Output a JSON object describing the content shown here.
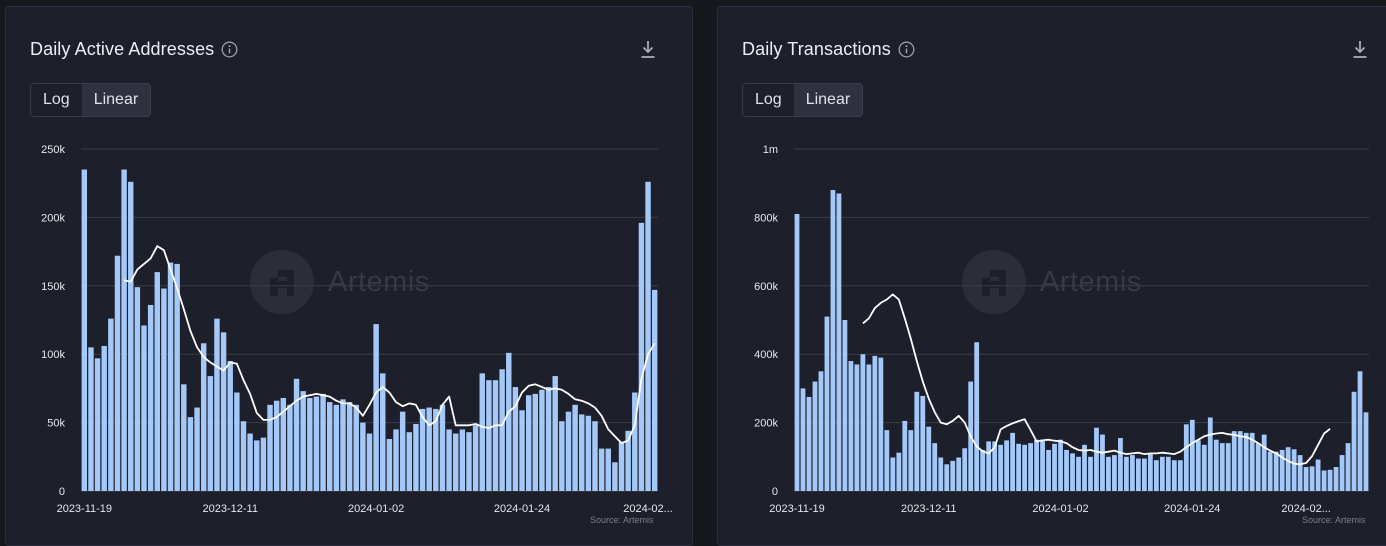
{
  "panels": [
    {
      "title": "Daily Active Addresses",
      "info_icon": "info-icon",
      "download_icon": "download-icon",
      "scale_options": [
        "Log",
        "Linear"
      ],
      "scale_selected": "Linear",
      "watermark": "Artemis",
      "source": "Source: Artemis"
    },
    {
      "title": "Daily Transactions",
      "info_icon": "info-icon",
      "download_icon": "download-icon",
      "scale_options": [
        "Log",
        "Linear"
      ],
      "scale_selected": "Linear",
      "watermark": "Artemis",
      "source": "Source: Artemis"
    }
  ],
  "colors": {
    "bar": "#a4c8f8",
    "line": "#ffffff",
    "grid": "#3a3d48",
    "axis_text": "#e6e8ec",
    "panel_bg": "#1d1f2a"
  },
  "chart_data": [
    {
      "type": "bar",
      "title": "Daily Active Addresses",
      "x_tick_labels": [
        "2023-11-19",
        "2023-12-11",
        "2024-01-02",
        "2024-01-24",
        "2024-02..."
      ],
      "x_tick_indices": [
        0,
        22,
        44,
        66,
        85
      ],
      "y_tick_labels": [
        "0",
        "50k",
        "100k",
        "150k",
        "200k",
        "250k"
      ],
      "y_tick_values": [
        0,
        50000,
        100000,
        150000,
        200000,
        250000
      ],
      "ylim": [
        0,
        250000
      ],
      "grid": true,
      "series": [
        {
          "type": "bar",
          "values": [
            235000,
            105000,
            97000,
            106000,
            126000,
            172000,
            235000,
            226000,
            149000,
            121000,
            136000,
            160000,
            148000,
            167000,
            166000,
            78000,
            54000,
            61000,
            108000,
            84000,
            126000,
            116000,
            95000,
            72000,
            51000,
            42000,
            37000,
            39000,
            63000,
            66000,
            68000,
            63000,
            82000,
            73000,
            68000,
            69000,
            71000,
            65000,
            63000,
            67000,
            65000,
            63000,
            50000,
            42000,
            122000,
            86000,
            38000,
            45000,
            58000,
            43000,
            49000,
            60000,
            61000,
            60000,
            63000,
            45000,
            42000,
            45000,
            43000,
            48000,
            86000,
            81000,
            81000,
            89000,
            101000,
            76000,
            59000,
            70000,
            71000,
            74000,
            76000,
            84000,
            51000,
            58000,
            63000,
            56000,
            55000,
            51000,
            31000,
            31000,
            21000,
            36000,
            44000,
            72000,
            196000,
            226000,
            147000
          ]
        },
        {
          "type": "line",
          "start_index": 6,
          "values": [
            154000,
            153000,
            162000,
            166000,
            170000,
            179000,
            176000,
            162000,
            148000,
            133000,
            117000,
            105000,
            98000,
            94000,
            91000,
            88000,
            94000,
            93000,
            81000,
            71000,
            57000,
            52000,
            52000,
            54000,
            58000,
            62000,
            66000,
            69000,
            70000,
            71000,
            70000,
            69000,
            66000,
            64000,
            64000,
            61000,
            55000,
            63000,
            72000,
            76000,
            72000,
            65000,
            62000,
            64000,
            63000,
            54000,
            48000,
            51000,
            63000,
            69000,
            48000,
            48000,
            48000,
            49000,
            47000,
            46000,
            48000,
            48000,
            58000,
            62000,
            72000,
            77000,
            78000,
            76000,
            74000,
            75000,
            74000,
            71000,
            67000,
            66000,
            64000,
            61000,
            55000,
            45000,
            40000,
            35000,
            37000,
            48000,
            82000,
            100000,
            108000
          ]
        }
      ]
    },
    {
      "type": "bar",
      "title": "Daily Transactions",
      "x_tick_labels": [
        "2023-11-19",
        "2023-12-11",
        "2024-01-02",
        "2024-01-24",
        "2024-02..."
      ],
      "x_tick_indices": [
        0,
        22,
        44,
        66,
        85
      ],
      "y_tick_labels": [
        "0",
        "200k",
        "400k",
        "600k",
        "800k",
        "1m"
      ],
      "y_tick_values": [
        0,
        200000,
        400000,
        600000,
        800000,
        1000000
      ],
      "ylim": [
        0,
        1000000
      ],
      "grid": true,
      "series": [
        {
          "type": "bar",
          "values": [
            810000,
            300000,
            275000,
            320000,
            350000,
            510000,
            880000,
            870000,
            500000,
            380000,
            370000,
            400000,
            370000,
            395000,
            390000,
            178000,
            98000,
            112000,
            205000,
            178000,
            290000,
            278000,
            188000,
            140000,
            98000,
            78000,
            88000,
            98000,
            125000,
            320000,
            435000,
            120000,
            145000,
            145000,
            135000,
            148000,
            170000,
            138000,
            135000,
            140000,
            150000,
            150000,
            120000,
            138000,
            150000,
            120000,
            110000,
            100000,
            135000,
            100000,
            185000,
            165000,
            100000,
            105000,
            155000,
            100000,
            105000,
            95000,
            95000,
            110000,
            90000,
            100000,
            100000,
            90000,
            90000,
            195000,
            208000,
            148000,
            135000,
            215000,
            150000,
            140000,
            140000,
            175000,
            175000,
            170000,
            170000,
            140000,
            165000,
            115000,
            115000,
            120000,
            128000,
            122000,
            105000,
            70000,
            72000,
            92000,
            60000,
            62000,
            70000,
            105000,
            140000,
            290000,
            350000,
            230000
          ]
        },
        {
          "type": "line",
          "start_index": 11,
          "values": [
            490000,
            505000,
            535000,
            550000,
            560000,
            575000,
            560000,
            505000,
            445000,
            380000,
            320000,
            270000,
            230000,
            200000,
            195000,
            205000,
            220000,
            200000,
            160000,
            130000,
            116000,
            110000,
            128000,
            180000,
            190000,
            198000,
            204000,
            210000,
            178000,
            145000,
            148000,
            150000,
            147000,
            145000,
            140000,
            128000,
            120000,
            118000,
            120000,
            115000,
            112000,
            115000,
            118000,
            112000,
            108000,
            110000,
            112000,
            108000,
            110000,
            110000,
            112000,
            110000,
            108000,
            115000,
            128000,
            140000,
            150000,
            160000,
            165000,
            168000,
            170000,
            166000,
            164000,
            160000,
            158000,
            150000,
            140000,
            128000,
            118000,
            110000,
            98000,
            88000,
            80000,
            78000,
            82000,
            102000,
            135000,
            168000,
            182000
          ]
        }
      ]
    }
  ]
}
